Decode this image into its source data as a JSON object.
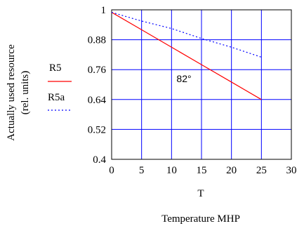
{
  "chart_data": {
    "type": "line",
    "title": "",
    "ylabel_lines": [
      "Actually used resource",
      "(rel. units)"
    ],
    "xlabel": "T",
    "xlabel_sub": "Temperature MHP",
    "annotation": "82°",
    "xlim": [
      0,
      30
    ],
    "ylim": [
      0.4,
      1
    ],
    "x_ticks": [
      "0",
      "5",
      "10",
      "15",
      "20",
      "25",
      "30"
    ],
    "y_ticks": [
      "0.4",
      "0.52",
      "0.64",
      "0.76",
      "0.88",
      "1"
    ],
    "grid": true,
    "legend_position": "left",
    "series": [
      {
        "name": "R5",
        "color": "#ff0000",
        "style": "solid",
        "x": [
          0,
          5,
          10,
          15,
          20,
          25
        ],
        "y": [
          0.99,
          0.92,
          0.85,
          0.78,
          0.71,
          0.64
        ]
      },
      {
        "name": "R5a",
        "color": "#0000ff",
        "style": "dotted",
        "x": [
          0,
          5,
          10,
          15,
          20,
          25
        ],
        "y": [
          0.99,
          0.955,
          0.925,
          0.885,
          0.85,
          0.81
        ]
      }
    ],
    "colors": {
      "grid": "#0000ff",
      "frame": "#000000"
    }
  }
}
